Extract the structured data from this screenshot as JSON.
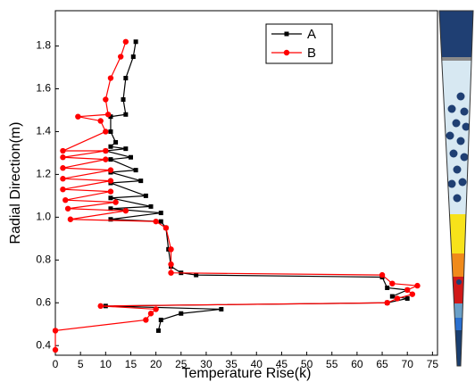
{
  "chart_data": {
    "type": "line",
    "x_label": "Temperature Rise(k)",
    "y_label": "Radial Direction(m)",
    "xlim": [
      0,
      76
    ],
    "ylim": [
      0.355,
      1.965
    ],
    "xticks": [
      0,
      5,
      10,
      15,
      20,
      25,
      30,
      35,
      40,
      45,
      50,
      55,
      60,
      65,
      70,
      75
    ],
    "yticks": [
      0.4,
      0.6,
      0.8,
      {
        "value": 1,
        "label": "1.0"
      },
      1.2,
      1.4,
      1.6,
      1.8
    ],
    "legend": "top-center",
    "series": [
      {
        "name": "A",
        "color": "#000000",
        "marker": "square",
        "x": [
          16,
          15.5,
          14,
          13.5,
          14,
          11,
          11,
          12,
          11,
          14,
          10,
          15,
          11,
          16,
          11,
          17,
          11,
          18,
          11,
          19,
          11,
          21,
          11,
          21,
          22,
          22.5,
          23,
          25,
          28,
          65,
          66,
          70,
          67,
          70,
          66,
          10,
          33,
          25,
          21,
          20.5
        ],
        "y": [
          1.82,
          1.75,
          1.65,
          1.55,
          1.48,
          1.47,
          1.4,
          1.35,
          1.33,
          1.32,
          1.31,
          1.28,
          1.27,
          1.22,
          1.21,
          1.17,
          1.16,
          1.1,
          1.09,
          1.05,
          1.04,
          1.02,
          0.99,
          0.98,
          0.95,
          0.85,
          0.77,
          0.74,
          0.73,
          0.72,
          0.67,
          0.66,
          0.63,
          0.62,
          0.6,
          0.585,
          0.57,
          0.55,
          0.52,
          0.47
        ]
      },
      {
        "name": "B",
        "color": "#ff0000",
        "marker": "circle",
        "x": [
          14,
          13,
          11,
          10,
          10.5,
          4.5,
          9,
          10,
          1.5,
          10,
          1.5,
          10,
          1.5,
          11,
          1.5,
          11,
          1.5,
          11,
          2,
          12,
          2.5,
          14,
          3,
          20,
          22,
          23,
          23,
          23,
          65,
          67,
          72,
          70,
          71,
          68,
          66,
          9,
          20,
          19,
          18,
          0,
          0
        ],
        "y": [
          1.82,
          1.75,
          1.65,
          1.55,
          1.48,
          1.47,
          1.45,
          1.4,
          1.31,
          1.31,
          1.28,
          1.27,
          1.23,
          1.22,
          1.18,
          1.17,
          1.13,
          1.12,
          1.08,
          1.07,
          1.04,
          1.03,
          0.99,
          0.98,
          0.95,
          0.85,
          0.78,
          0.74,
          0.73,
          0.69,
          0.68,
          0.66,
          0.64,
          0.62,
          0.6,
          0.585,
          0.57,
          0.55,
          0.52,
          0.47,
          0.38
        ]
      }
    ]
  }
}
